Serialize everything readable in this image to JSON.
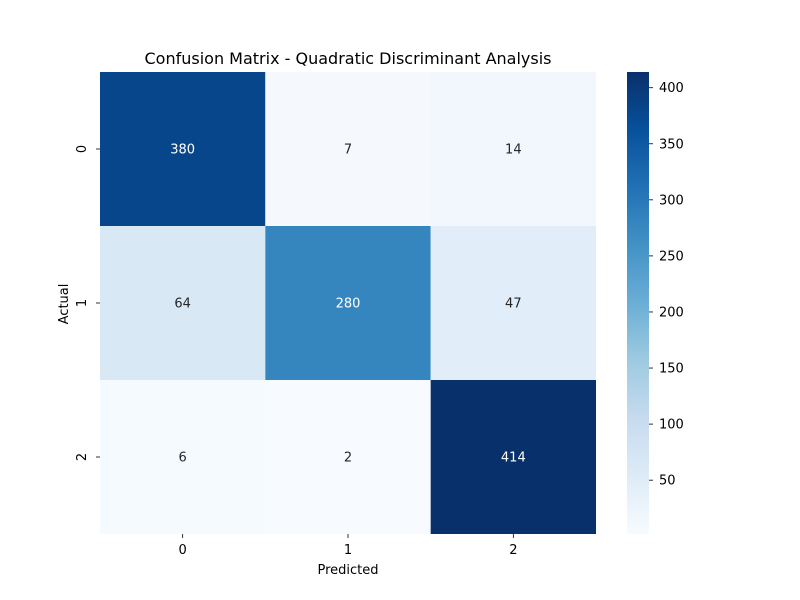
{
  "chart_data": {
    "type": "heatmap",
    "title": "Confusion Matrix - Quadratic Discriminant Analysis",
    "xlabel": "Predicted",
    "ylabel": "Actual",
    "x_categories": [
      "0",
      "1",
      "2"
    ],
    "y_categories": [
      "0",
      "1",
      "2"
    ],
    "values": [
      [
        380,
        7,
        14
      ],
      [
        64,
        280,
        47
      ],
      [
        6,
        2,
        414
      ]
    ],
    "colormap": "Blues",
    "color_range": [
      2,
      414
    ],
    "colorbar": {
      "ticks": [
        50,
        100,
        150,
        200,
        250,
        300,
        350,
        400
      ],
      "tick_labels": [
        "50",
        "100",
        "150",
        "200",
        "250",
        "300",
        "350",
        "400"
      ]
    },
    "colors": {
      "low": "#f7fbff",
      "high": "#08306b"
    }
  }
}
